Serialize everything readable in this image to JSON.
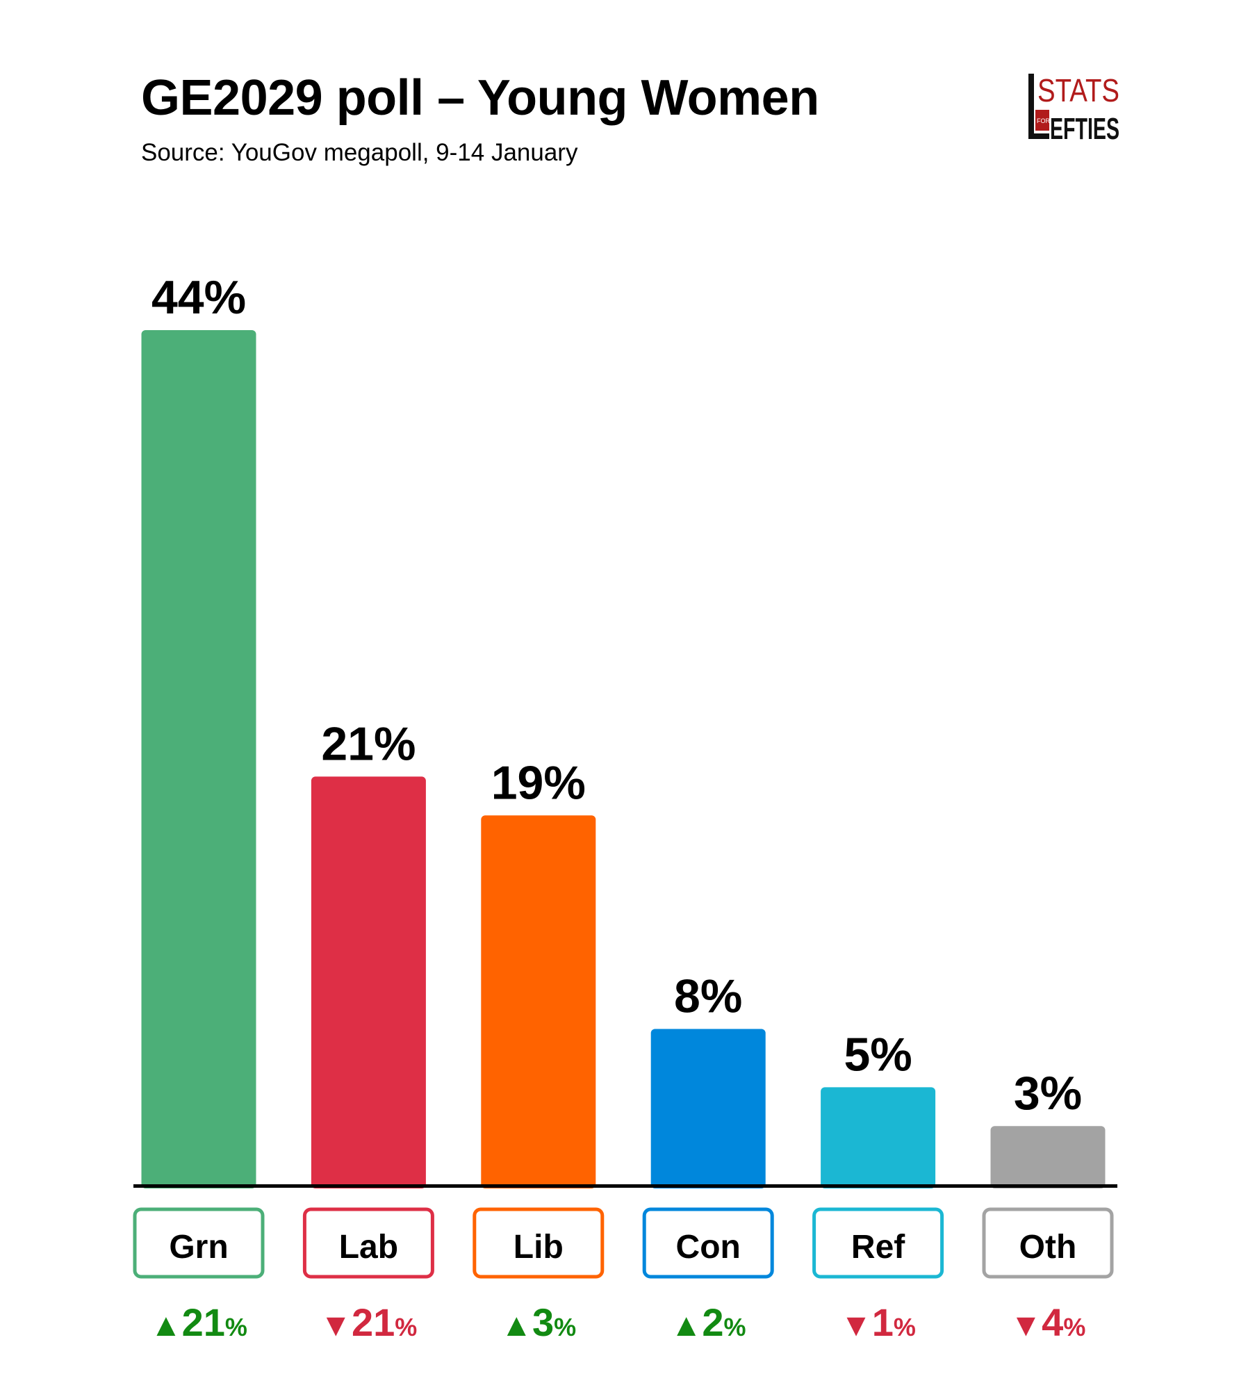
{
  "title": "GE2029 poll – Young Women",
  "subtitle": "Source: YouGov megapoll, 9-14 January",
  "logo": {
    "line1": "STATS",
    "small": "FOR",
    "line2": "EFTIES",
    "color": "#b11b1b"
  },
  "chart_data": {
    "type": "bar",
    "categories": [
      "Grn",
      "Lab",
      "Lib",
      "Con",
      "Ref",
      "Oth"
    ],
    "values": [
      44,
      21,
      19,
      8,
      5,
      3
    ],
    "value_labels": [
      "44%",
      "21%",
      "19%",
      "8%",
      "5%",
      "3%"
    ],
    "changes": [
      {
        "direction": "up",
        "value": "21",
        "unit": "%"
      },
      {
        "direction": "down",
        "value": "21",
        "unit": "%"
      },
      {
        "direction": "up",
        "value": "3",
        "unit": "%"
      },
      {
        "direction": "up",
        "value": "2",
        "unit": "%"
      },
      {
        "direction": "down",
        "value": "1",
        "unit": "%"
      },
      {
        "direction": "down",
        "value": "4",
        "unit": "%"
      }
    ],
    "colors": [
      "#4caf78",
      "#de2f46",
      "#ff6300",
      "#0087dc",
      "#1bb7d3",
      "#a3a3a3"
    ],
    "change_colors": {
      "up": "#128a12",
      "down": "#d1283f"
    },
    "ylim": [
      0,
      44
    ],
    "grid": false,
    "legend": "none"
  }
}
